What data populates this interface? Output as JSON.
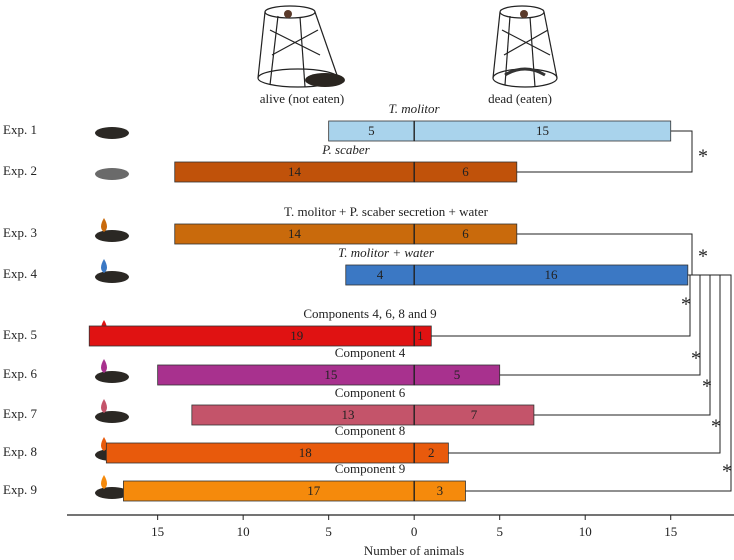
{
  "chart_data": {
    "type": "diverging-bar",
    "categories": [
      "Exp. 1",
      "Exp. 2",
      "Exp. 3",
      "Exp. 4",
      "Exp. 5",
      "Exp. 6",
      "Exp. 7",
      "Exp. 8",
      "Exp. 9"
    ],
    "bar_titles": [
      "T. molitor",
      "P. scaber",
      "T. molitor + P. scaber secretion + water",
      "T. molitor + water",
      "Components 4, 6, 8 and 9",
      "Component 4",
      "Component 6",
      "Component 8",
      "Component 9"
    ],
    "colors": [
      "#a9d3ec",
      "#c0520a",
      "#c96a0c",
      "#3b78c4",
      "#e01212",
      "#a8318e",
      "#c4546a",
      "#e85a0c",
      "#f58a0c"
    ],
    "series": [
      {
        "name": "alive (not eaten)",
        "values": [
          5,
          14,
          14,
          4,
          19,
          15,
          13,
          18,
          17
        ]
      },
      {
        "name": "dead (eaten)",
        "values": [
          15,
          6,
          6,
          16,
          1,
          5,
          7,
          2,
          3
        ]
      }
    ],
    "xlabel": "Number of animals",
    "xlim": [
      -20.3,
      18.7
    ],
    "xticks": [
      {
        "value": -15,
        "label": "15"
      },
      {
        "value": -10,
        "label": "10"
      },
      {
        "value": -5,
        "label": "5"
      },
      0,
      5,
      10,
      15
    ],
    "significance": [
      "*",
      "*",
      "*",
      "*",
      "*",
      "*",
      "*"
    ]
  }
}
